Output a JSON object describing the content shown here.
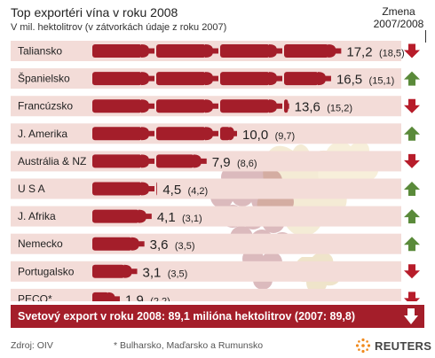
{
  "header": {
    "title": "Top exportéri vína v roku 2008",
    "subtitle": "V mil. hektolitrov (v zátvorkách údaje z roku 2007)",
    "change_title_line1": "Zmena",
    "change_title_line2": "2007/2008"
  },
  "chart_data": {
    "type": "bar",
    "orientation": "horizontal",
    "title": "Top exportéri vína v roku 2008",
    "subtitle": "V mil. hektolitrov (v zátvorkách údaje z roku 2007)",
    "categories": [
      "Taliansko",
      "Španielsko",
      "Francúzsko",
      "J. Amerika",
      "Austrália & NZ",
      "U S A",
      "J. Afrika",
      "Nemecko",
      "Portugalsko",
      "PECO*"
    ],
    "values_2008": [
      17.2,
      16.5,
      13.6,
      10.0,
      7.9,
      4.5,
      4.1,
      3.6,
      3.1,
      1.9
    ],
    "values_2007": [
      18.5,
      15.1,
      15.2,
      9.7,
      8.6,
      4.2,
      3.1,
      3.5,
      3.5,
      2.2
    ],
    "labels_2008": [
      "17,2",
      "16,5",
      "13,6",
      "10,0",
      "7,9",
      "4,5",
      "4,1",
      "3,6",
      "3,1",
      "1,9"
    ],
    "labels_2007": [
      "(18,5)",
      "(15,1)",
      "(15,2)",
      "(9,7)",
      "(8,6)",
      "(4,2)",
      "(3,1)",
      "(3,5)",
      "(3,5)",
      "(2,2)"
    ],
    "change": [
      "down",
      "up",
      "down",
      "up",
      "down",
      "up",
      "up",
      "up",
      "down",
      "down"
    ],
    "colors": {
      "bar": "#a41e2a",
      "row_band": "#f3dcd8",
      "arrow_up": "#5a8a3a",
      "arrow_down": "#b71c2a"
    }
  },
  "summary": {
    "text": "Svetový export v roku 2008:  89,1 milióna hektolitrov (2007: 89,8)",
    "change": "down"
  },
  "footer": {
    "source": "Zdroj: OIV",
    "footnote": "* Bulharsko, Maďarsko a Rumunsko",
    "brand": "REUTERS"
  }
}
